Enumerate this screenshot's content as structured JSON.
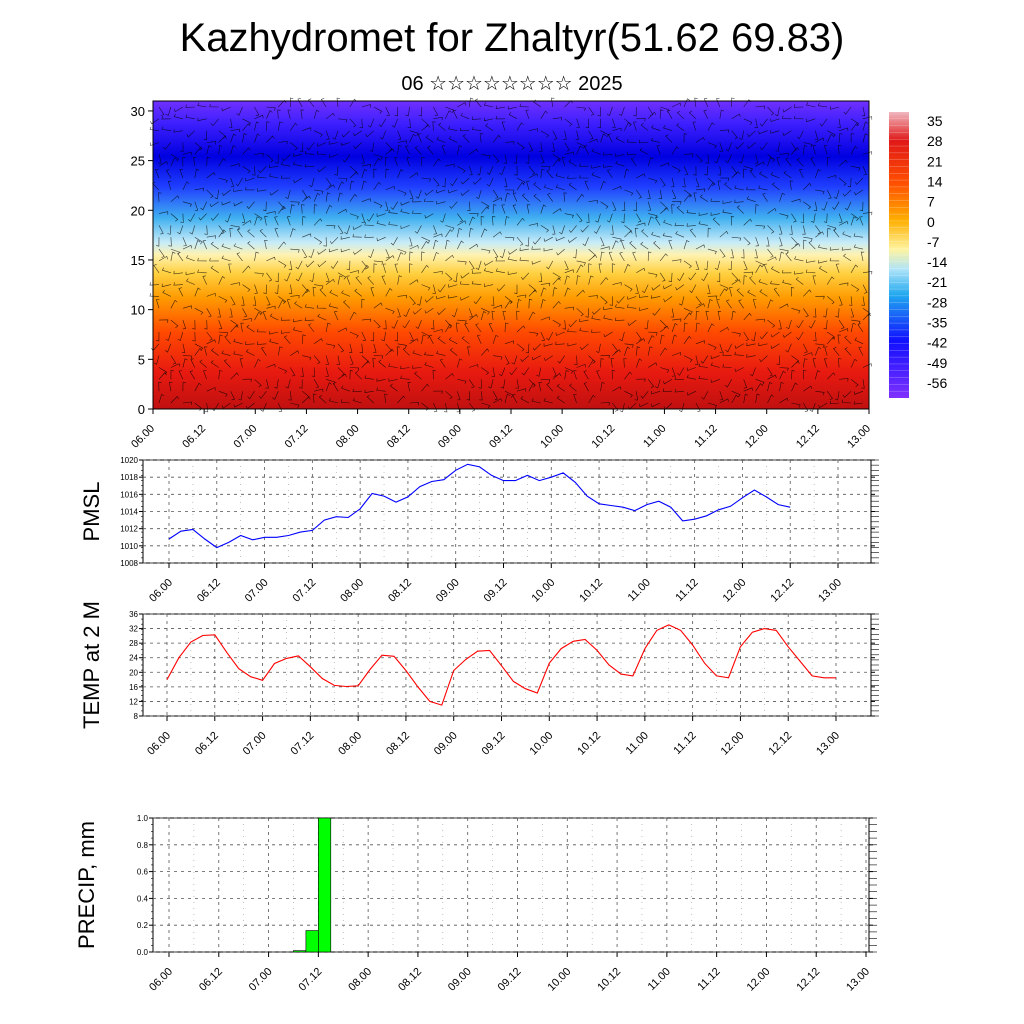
{
  "header": {
    "title": "Kazhydromet for Zhaltyr(51.62 69.83)",
    "subtitle": "06 ☆☆☆☆☆☆☆☆ 2025"
  },
  "colorbar": {
    "labels": [
      "35",
      "28",
      "21",
      "14",
      "7",
      "0",
      "-7",
      "-14",
      "-21",
      "-28",
      "-35",
      "-42",
      "-49",
      "-56"
    ],
    "stops": [
      "#f0b8c0",
      "#e62020",
      "#ff7a00",
      "#ffd000",
      "#fff4a0",
      "#b0e4f8",
      "#20a8f0",
      "#2020ff",
      "#8030ff"
    ]
  },
  "chart_data": [
    {
      "id": "cross-section",
      "type": "heatmap",
      "title": "",
      "y_ticks": [
        0,
        5,
        10,
        15,
        20,
        25,
        30
      ],
      "ylim": [
        0,
        31
      ],
      "x_ticks": [
        "06.00",
        "06.12",
        "07.00",
        "07.12",
        "08.00",
        "08.12",
        "09.00",
        "09.12",
        "10.00",
        "10.12",
        "11.00",
        "11.12",
        "12.00",
        "12.12",
        "13.00"
      ],
      "value_range": [
        -60,
        38
      ],
      "overlay": "wind barbs"
    },
    {
      "id": "pmsl",
      "type": "line",
      "ylabel": "PMSL",
      "ylim": [
        1008,
        1020
      ],
      "y_ticks": [
        1008,
        1010,
        1012,
        1014,
        1016,
        1018,
        1020
      ],
      "x_ticks": [
        "06.00",
        "06.12",
        "07.00",
        "07.12",
        "08.00",
        "08.12",
        "09.00",
        "09.12",
        "10.00",
        "10.12",
        "11.00",
        "11.12",
        "12.00",
        "12.12",
        "13.00"
      ],
      "grid": true,
      "series": [
        {
          "color": "#0000ff",
          "x": [
            0,
            3,
            6,
            9,
            12,
            15,
            18,
            21,
            24,
            27,
            30,
            33,
            36,
            39,
            42,
            45,
            48,
            51,
            54,
            57,
            60,
            63,
            66,
            69,
            72,
            75,
            78,
            81,
            84,
            87,
            90,
            93,
            96,
            99,
            102,
            105,
            108,
            111,
            114,
            117,
            120,
            123,
            126,
            129,
            132,
            135,
            138,
            141,
            144,
            147,
            150,
            153,
            156
          ],
          "y": [
            1010.8,
            1011.7,
            1011.9,
            1010.8,
            1009.8,
            1010.4,
            1011.2,
            1010.7,
            1011.0,
            1011.0,
            1011.2,
            1011.6,
            1011.8,
            1013.0,
            1013.4,
            1013.3,
            1014.3,
            1016.1,
            1015.8,
            1015.1,
            1015.7,
            1016.9,
            1017.5,
            1017.7,
            1018.8,
            1019.5,
            1019.2,
            1018.2,
            1017.6,
            1017.6,
            1018.2,
            1017.6,
            1018.0,
            1018.5,
            1017.4,
            1015.8,
            1014.9,
            1014.7,
            1014.5,
            1014.1,
            1014.8,
            1015.2,
            1014.5,
            1012.9,
            1013.1,
            1013.5,
            1014.2,
            1014.6,
            1015.6,
            1016.5,
            1015.7,
            1014.8,
            1014.5
          ]
        }
      ]
    },
    {
      "id": "temp2m",
      "type": "line",
      "ylabel": "TEMP at 2 M",
      "ylim": [
        8,
        36
      ],
      "y_ticks": [
        8,
        12,
        16,
        20,
        24,
        28,
        32,
        36
      ],
      "x_ticks": [
        "06.00",
        "06.12",
        "07.00",
        "07.12",
        "08.00",
        "08.12",
        "09.00",
        "09.12",
        "10.00",
        "10.12",
        "11.00",
        "11.12",
        "12.00",
        "12.12",
        "13.00"
      ],
      "grid": true,
      "series": [
        {
          "color": "#ff0000",
          "x": [
            0,
            3,
            6,
            9,
            12,
            15,
            18,
            21,
            24,
            27,
            30,
            33,
            36,
            39,
            42,
            45,
            48,
            51,
            54,
            57,
            60,
            63,
            66,
            69,
            72,
            75,
            78,
            81,
            84,
            87,
            90,
            93,
            96,
            99,
            102,
            105,
            108,
            111,
            114,
            117,
            120,
            123,
            126,
            129,
            132,
            135,
            138,
            141,
            144,
            147,
            150,
            153,
            156,
            159,
            162,
            165,
            168
          ],
          "y": [
            18.0,
            24.0,
            28.3,
            30.1,
            30.3,
            25.5,
            21.0,
            18.8,
            17.8,
            22.4,
            23.8,
            24.5,
            21.5,
            18.3,
            16.4,
            16.1,
            16.3,
            20.8,
            24.7,
            24.4,
            20.5,
            16.0,
            12.0,
            11.0,
            20.5,
            23.5,
            25.8,
            26.0,
            21.8,
            17.5,
            15.5,
            14.3,
            22.5,
            26.5,
            28.5,
            29.0,
            26.0,
            22.0,
            19.5,
            19.0,
            26.5,
            31.5,
            33.0,
            31.5,
            27.5,
            22.5,
            19.0,
            18.5,
            27.0,
            31.0,
            32.0,
            31.5,
            27.0,
            23.0,
            19.0,
            18.5,
            18.5
          ]
        }
      ]
    },
    {
      "id": "precip",
      "type": "bar",
      "ylabel": "PRECIP, mm",
      "ylim": [
        0,
        1.0
      ],
      "y_ticks": [
        "0.0",
        "0.2",
        "0.4",
        "0.6",
        "0.8",
        "1.0"
      ],
      "x_ticks": [
        "06.00",
        "06.12",
        "07.00",
        "07.12",
        "08.00",
        "08.12",
        "09.00",
        "09.12",
        "10.00",
        "10.12",
        "11.00",
        "11.12",
        "12.00",
        "12.12",
        "13.00"
      ],
      "grid": true,
      "bar_color": "#00ff00",
      "bars": [
        {
          "x0": 30,
          "x1": 33,
          "value": 0.01
        },
        {
          "x0": 33,
          "x1": 36,
          "value": 0.16
        },
        {
          "x0": 36,
          "x1": 39,
          "value": 1.0
        }
      ]
    }
  ]
}
